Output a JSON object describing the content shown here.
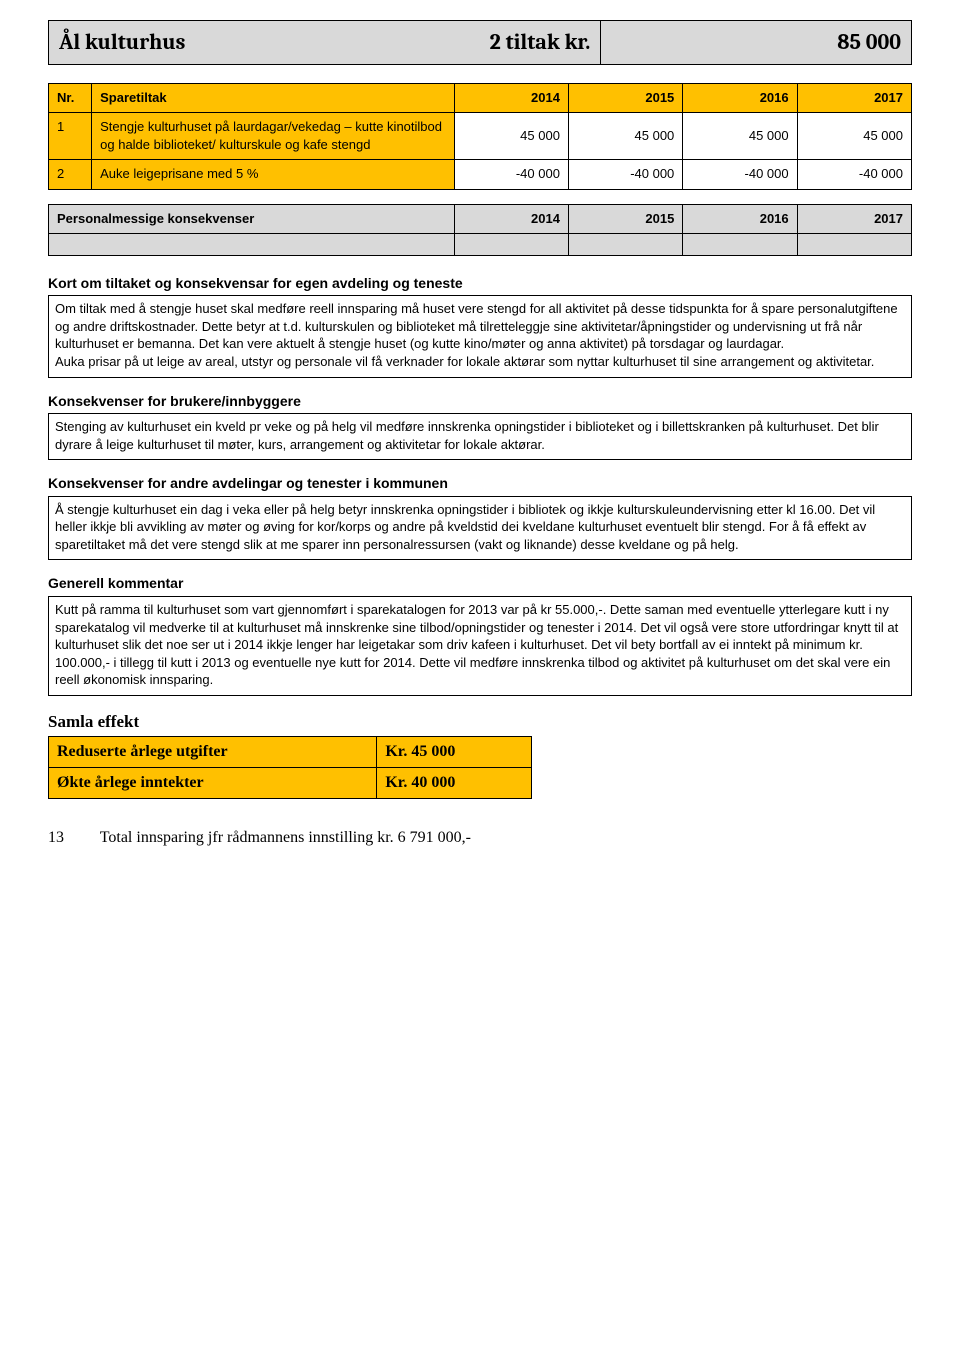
{
  "colors": {
    "accent_orange": "#ffc000",
    "header_gray": "#d9d9d9",
    "border": "#000000",
    "background": "#ffffff",
    "text": "#000000"
  },
  "header": {
    "title": "Ål kulturhus",
    "subtitle_right": "2 tiltak kr.",
    "amount": "85 000"
  },
  "main_table": {
    "columns": [
      "Nr.",
      "Sparetiltak",
      "2014",
      "2015",
      "2016",
      "2017"
    ],
    "rows": [
      {
        "nr": "1",
        "desc": "Stengje kulturhuset på laurdagar/vekedag – kutte kinotilbod og halde biblioteket/ kulturskule og kafe stengd",
        "v2014": "45 000",
        "v2015": "45 000",
        "v2016": "45 000",
        "v2017": "45 000"
      },
      {
        "nr": "2",
        "desc": "Auke leigeprisane med 5 %",
        "v2014": "-40 000",
        "v2015": "-40 000",
        "v2016": "-40 000",
        "v2017": "-40 000"
      }
    ]
  },
  "personal_table": {
    "label": "Personalmessige konsekvenser",
    "years": [
      "2014",
      "2015",
      "2016",
      "2017"
    ]
  },
  "sections": {
    "s1": {
      "heading": "Kort om tiltaket og konsekvensar for egen avdeling og teneste",
      "body": "Om tiltak med å stengje huset skal medføre reell innsparing må huset vere stengd for all aktivitet på desse tidspunkta for å spare personalutgiftene og andre driftskostnader. Dette betyr at t.d. kulturskulen og biblioteket må tilretteleggje sine aktivitetar/åpningstider og undervisning ut frå når kulturhuset er bemanna. Det kan vere aktuelt å stengje huset (og kutte kino/møter og anna aktivitet) på torsdagar og laurdagar.\nAuka prisar på ut leige av areal, utstyr og personale vil få verknader for lokale aktørar som nyttar kulturhuset til sine arrangement og aktivitetar."
    },
    "s2": {
      "heading": "Konsekvenser for brukere/innbyggere",
      "body": "Stenging av kulturhuset ein kveld pr veke og på helg vil medføre innskrenka opningstider i biblioteket og i billettskranken på kulturhuset. Det blir dyrare å leige kulturhuset til møter, kurs, arrangement og aktivitetar for lokale aktørar."
    },
    "s3": {
      "heading": "Konsekvenser for andre avdelingar og tenester i kommunen",
      "body": "Å stengje kulturhuset ein dag i veka eller på helg betyr innskrenka opningstider i bibliotek og ikkje kulturskuleundervisning etter kl 16.00. Det vil heller ikkje bli avvikling av møter og øving for kor/korps og andre på kveldstid dei kveldane kulturhuset eventuelt blir stengd. For å få effekt av sparetiltaket må det vere stengd slik at me sparer inn personalressursen (vakt og liknande) desse kveldane og på helg."
    },
    "s4": {
      "heading": "Generell kommentar",
      "body": "Kutt på ramma til kulturhuset som vart gjennomført i sparekatalogen for 2013 var på kr 55.000,-. Dette saman med eventuelle ytterlegare kutt i ny sparekatalog vil medverke til at kulturhuset må innskrenke sine tilbod/opningstider og tenester i 2014. Det vil også vere store utfordringar knytt til at kulturhuset slik det noe ser ut i 2014 ikkje lenger har leigetakar som driv kafeen i kulturhuset. Det vil bety bortfall av ei inntekt på minimum kr. 100.000,- i tillegg til kutt i 2013 og eventuelle nye kutt for 2014. Dette vil medføre innskrenka tilbod og aktivitet på kulturhuset om det skal vere ein reell økonomisk innsparing."
    }
  },
  "samla": {
    "heading": "Samla effekt",
    "rows": [
      {
        "label": "Reduserte årlege utgifter",
        "amount": "Kr. 45 000"
      },
      {
        "label": "Økte årlege inntekter",
        "amount": "Kr. 40 000"
      }
    ]
  },
  "footer": {
    "page": "13",
    "text": "Total innsparing jfr rådmannens innstilling kr. 6 791 000,-"
  }
}
